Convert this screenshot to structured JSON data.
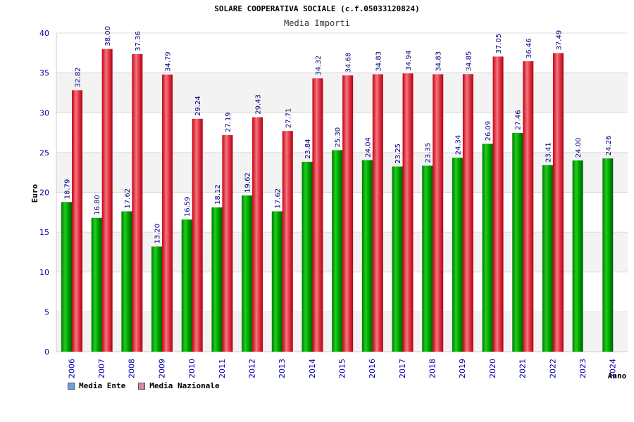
{
  "chart_data": {
    "type": "bar",
    "title": "SOLARE COOPERATIVA SOCIALE (c.f.05033120824)",
    "subtitle": "Media Importi",
    "xlabel": "Anno",
    "ylabel": "Euro",
    "ylim": [
      0,
      40
    ],
    "yticks": [
      0,
      5,
      10,
      15,
      20,
      25,
      30,
      35,
      40
    ],
    "grid": true,
    "legend_position": "bottom-left",
    "categories": [
      "2006",
      "2007",
      "2008",
      "2009",
      "2010",
      "2011",
      "2012",
      "2013",
      "2014",
      "2015",
      "2016",
      "2017",
      "2018",
      "2019",
      "2020",
      "2021",
      "2022",
      "2023",
      "2024"
    ],
    "series": [
      {
        "name": "Media Ente",
        "color": "#00aa00",
        "legend_color": "#66a3e0",
        "values": [
          18.79,
          16.8,
          17.62,
          13.2,
          16.59,
          18.12,
          19.62,
          17.62,
          23.84,
          25.3,
          24.04,
          23.25,
          23.35,
          24.34,
          26.09,
          27.46,
          23.41,
          24.0,
          24.26
        ]
      },
      {
        "name": "Media Nazionale",
        "color": "#e8202a",
        "legend_color": "#e080b0",
        "values": [
          32.82,
          38.0,
          37.36,
          34.79,
          29.24,
          27.19,
          29.43,
          27.71,
          34.32,
          34.68,
          34.83,
          34.94,
          34.83,
          34.85,
          37.05,
          36.46,
          37.49,
          null,
          null
        ]
      }
    ]
  }
}
